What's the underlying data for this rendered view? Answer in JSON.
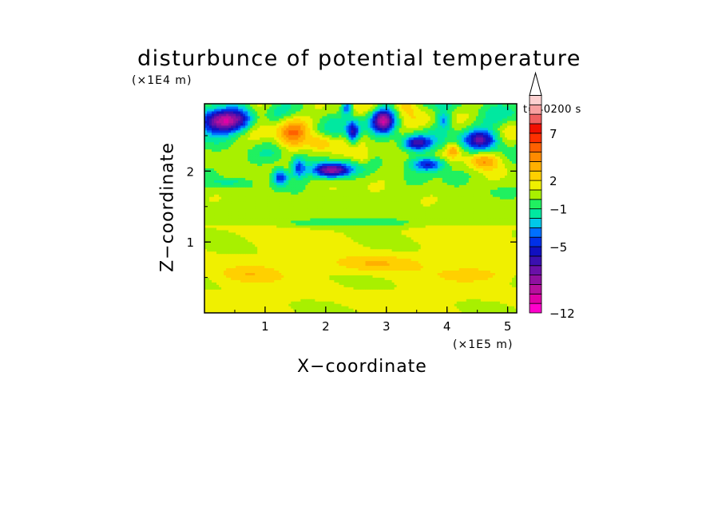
{
  "chart_data": {
    "type": "heatmap",
    "title": "disturbunce of potential temperature",
    "time_label": "t=40200 s",
    "xlabel": "X−coordinate",
    "ylabel": "Z−coordinate",
    "x_unit": "(×1E5 m)",
    "z_unit": "(×1E4 m)",
    "xlim": [
      0,
      5.15
    ],
    "zlim": [
      0,
      2.95
    ],
    "x_ticks": [
      1,
      2,
      3,
      4,
      5
    ],
    "x_tick_labels": [
      "1",
      "2",
      "3",
      "4",
      "5"
    ],
    "z_ticks": [
      1,
      2
    ],
    "z_tick_labels": [
      "1",
      "2"
    ],
    "colorbar": {
      "levels": [
        -12,
        -11,
        -10,
        -9,
        -8,
        -7,
        -6,
        -5,
        -4,
        -3,
        -2,
        -1,
        0,
        1,
        2,
        3,
        4,
        5,
        6,
        7,
        8,
        9,
        10
      ],
      "colors": [
        "#ff00cc",
        "#e000a8",
        "#b8109e",
        "#9010a0",
        "#6a10a8",
        "#3a10b0",
        "#1010c0",
        "#0030e8",
        "#0070ff",
        "#00c8e8",
        "#00e8a0",
        "#20f060",
        "#a8f000",
        "#f0f000",
        "#ffd000",
        "#ffb000",
        "#ff8a00",
        "#ff6000",
        "#ff3000",
        "#f01000",
        "#f06060",
        "#f8a0a0",
        "#fcd0d0"
      ],
      "labeled_levels": [
        -12,
        -5,
        -1,
        2,
        7
      ],
      "tick_labels": [
        "−12",
        "−5",
        "−1",
        "2",
        "7"
      ],
      "extend": "max"
    },
    "features": [
      {
        "x": 0.3,
        "z": 2.7,
        "value": -8
      },
      {
        "x": 2.1,
        "z": 2.0,
        "value": -8
      },
      {
        "x": 3.0,
        "z": 2.7,
        "value": -8
      },
      {
        "x": 1.6,
        "z": 2.7,
        "value": 4
      },
      {
        "x": 2.8,
        "z": 0.7,
        "value": 3
      }
    ]
  }
}
